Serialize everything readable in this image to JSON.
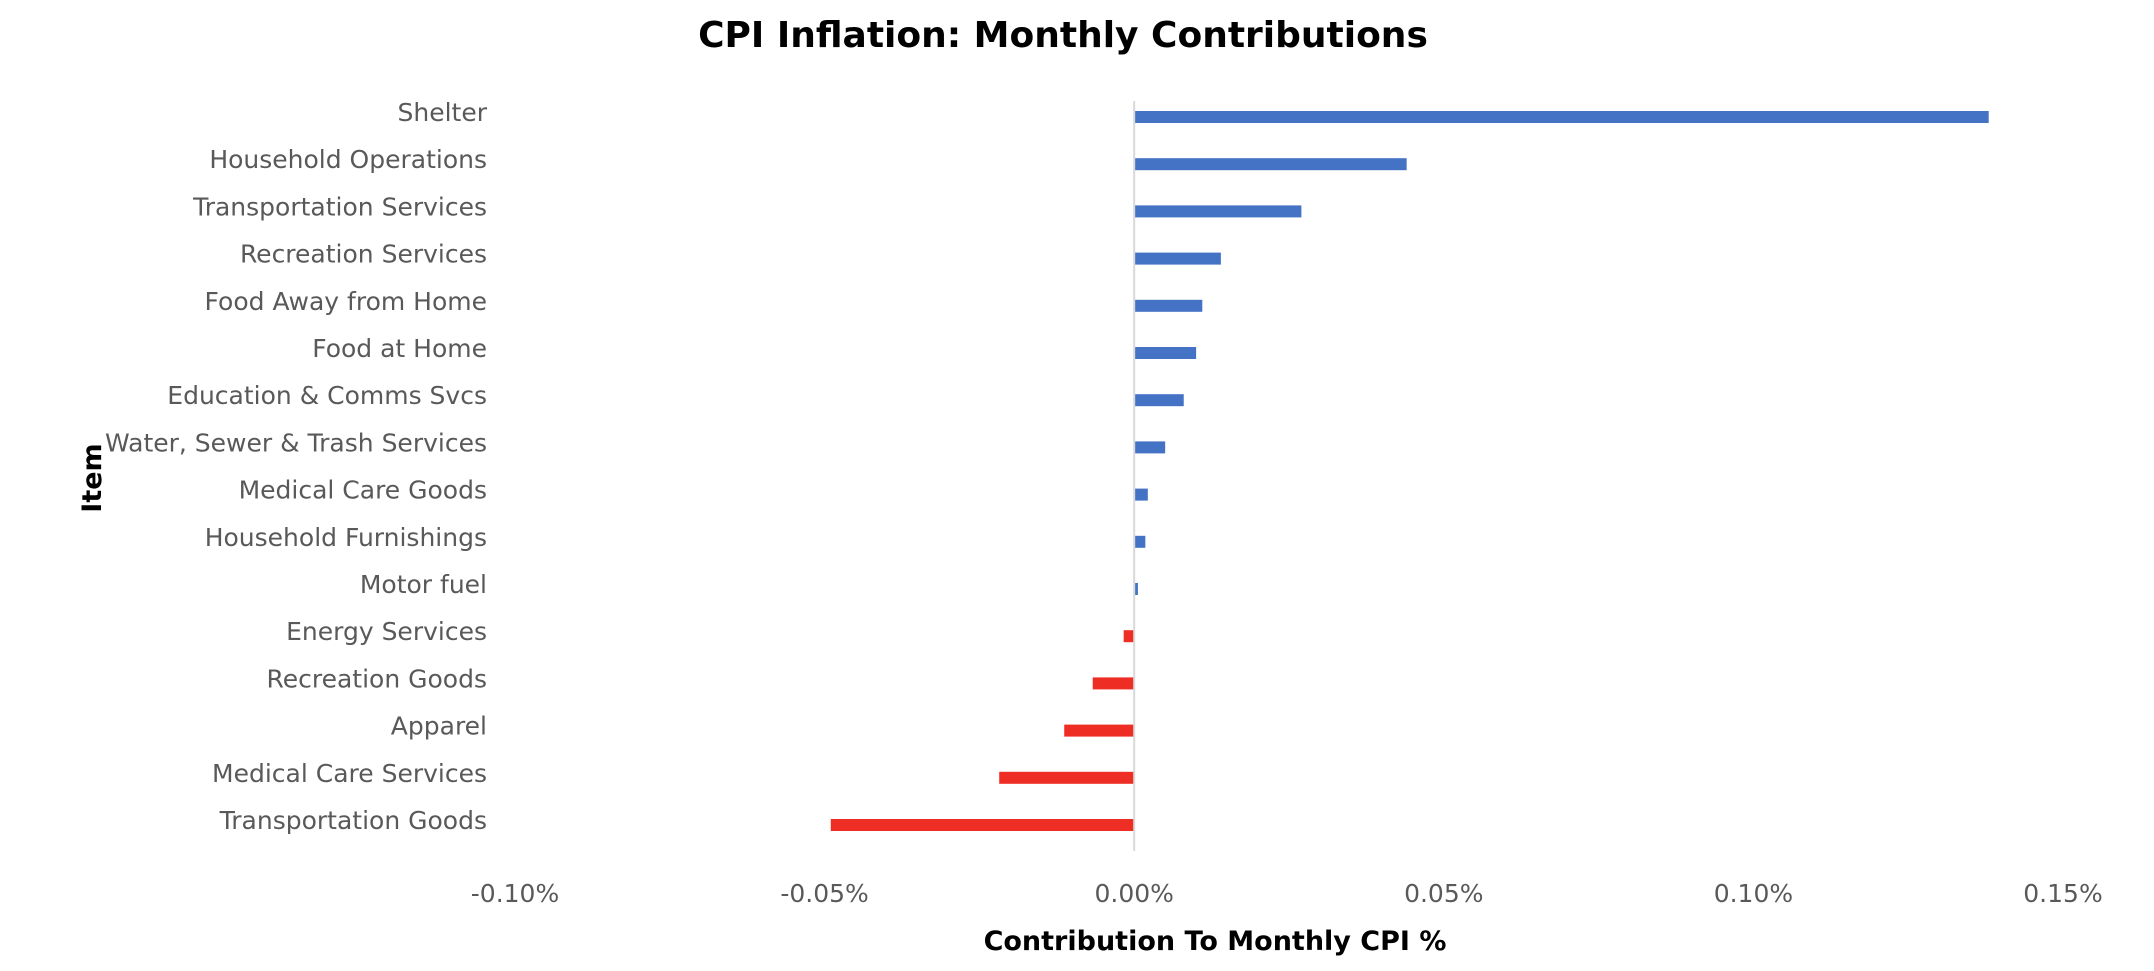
{
  "chart_data": {
    "type": "bar",
    "orientation": "horizontal",
    "title": "CPI Inflation: Monthly Contributions",
    "xlabel": "Contribution To Monthly CPI %",
    "ylabel": "Item",
    "xlim": [
      -0.1,
      0.15
    ],
    "x_ticks": [
      -0.1,
      -0.05,
      0.0,
      0.05,
      0.1,
      0.15
    ],
    "x_tick_labels": [
      "-0.10%",
      "-0.05%",
      "0.00%",
      "0.05%",
      "0.10%",
      "0.15%"
    ],
    "grid": false,
    "legend": "none",
    "categories": [
      "Shelter",
      "Household Operations",
      "Transportation Services",
      "Recreation Services",
      "Food Away from Home",
      "Food at Home",
      "Education & Comms Svcs",
      "Water, Sewer & Trash Services",
      "Medical Care Goods",
      "Household Furnishings",
      "Motor fuel",
      "Energy Services",
      "Recreation Goods",
      "Apparel",
      "Medical Care Services",
      "Transportation Goods"
    ],
    "values": [
      0.138,
      0.044,
      0.027,
      0.014,
      0.011,
      0.01,
      0.008,
      0.005,
      0.0022,
      0.0018,
      0.0006,
      -0.0017,
      -0.0067,
      -0.0113,
      -0.0218,
      -0.049
    ],
    "colors": {
      "positive": "#4472C4",
      "negative": "#EE2D24",
      "zero_line": "#D9D9D9"
    }
  }
}
